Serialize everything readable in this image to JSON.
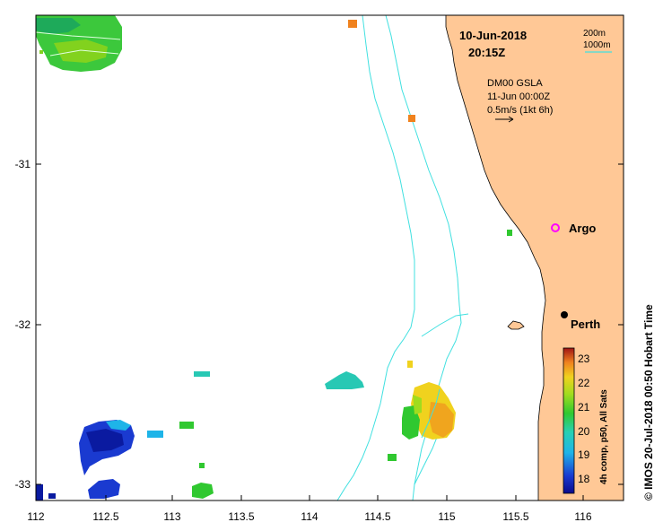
{
  "map": {
    "date_label": "10-Jun-2018",
    "time_label": "20:15Z",
    "product_label": "DM00 GSLA",
    "product_time": "11-Jun 00:00Z",
    "vector_scale_label": "0.5m/s (1kt 6h)",
    "contour_labels": [
      "200m",
      "1000m"
    ],
    "places": [
      {
        "name": "Argo",
        "marker": "magenta-ring"
      },
      {
        "name": "Perth",
        "marker": "black-dot"
      }
    ],
    "x_ticks": [
      "112",
      "112.5",
      "113",
      "113.5",
      "114",
      "114.5",
      "115",
      "115.5",
      "116"
    ],
    "y_ticks": [
      "-31",
      "-32",
      "-33"
    ],
    "colorbar": {
      "title": "4h comp, p50, All Sats",
      "ticks": [
        "23",
        "22",
        "21",
        "20",
        "19",
        "18"
      ],
      "min": 17.5,
      "max": 23.5
    },
    "credit": "© IMOS 20-Jul-2018 00:50 Hobart Time",
    "colors": {
      "land": "#ffc896",
      "contour": "#40e0e0",
      "argo": "#ff00ff"
    }
  }
}
